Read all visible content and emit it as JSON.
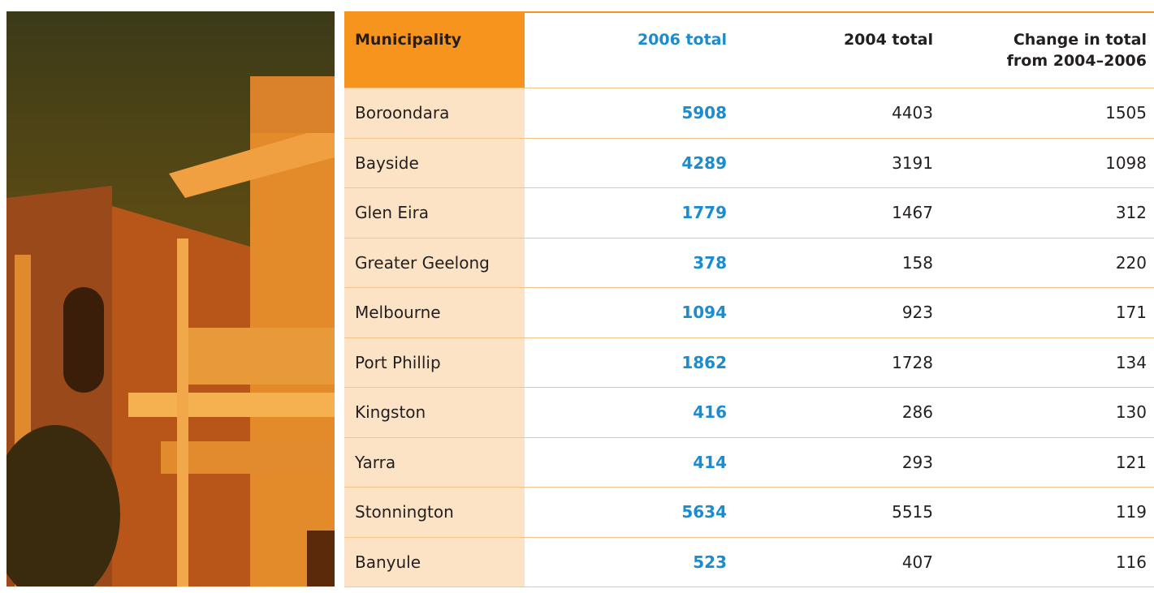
{
  "table": {
    "header": [
      "Municipality",
      "2006 total",
      "2004 total",
      "Change in total from 2004–2006"
    ],
    "rows": [
      [
        "Boroondara",
        5908,
        4403,
        1505
      ],
      [
        "Bayside",
        4289,
        3191,
        1098
      ],
      [
        "Glen Eira",
        1779,
        1467,
        312
      ],
      [
        "Greater Geelong",
        378,
        158,
        220
      ],
      [
        "Melbourne",
        1094,
        923,
        171
      ],
      [
        "Port Phillip",
        1862,
        1728,
        134
      ],
      [
        "Kingston",
        416,
        286,
        130
      ],
      [
        "Yarra",
        414,
        293,
        121
      ],
      [
        "Stonnington",
        5634,
        5515,
        119
      ],
      [
        "Banyule",
        523,
        407,
        116
      ]
    ]
  }
}
